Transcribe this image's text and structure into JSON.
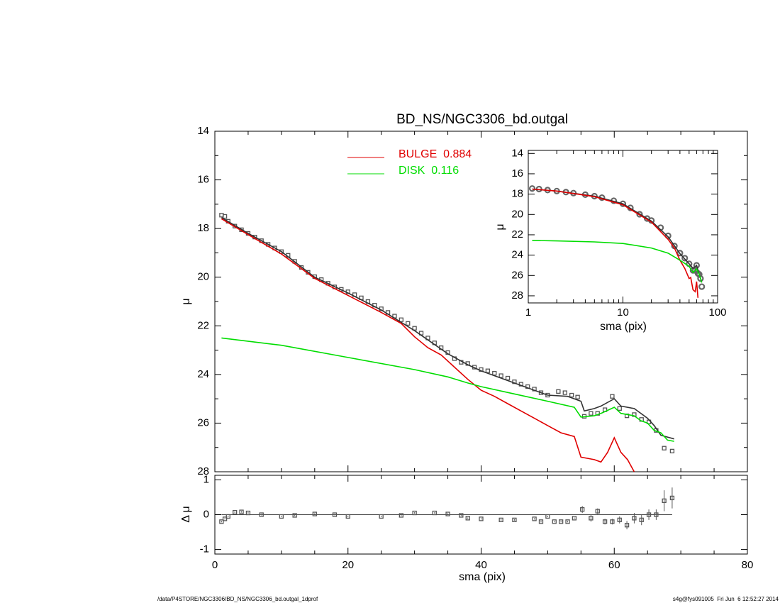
{
  "footer": {
    "left": "/data/P4STORE/NGC3306/BD_NS/NGC3306_bd.outgal_1dprof",
    "right": "s4g@fys091005  Fri Jun  6 12:52:27 2014"
  },
  "chart_data": [
    {
      "type": "line",
      "title": "BD_NS/NGC3306_bd.outgal",
      "ylabel": "μ",
      "xlim": [
        0,
        80
      ],
      "ylim": [
        28,
        14
      ],
      "xticks": [
        0,
        20,
        40,
        60,
        80
      ],
      "xminor": [
        5,
        10,
        15,
        25,
        30,
        35,
        45,
        50,
        55,
        65,
        70,
        75
      ],
      "xtick_labels": false,
      "yticks": [
        14,
        16,
        18,
        20,
        22,
        24,
        26,
        28
      ],
      "yminor": [
        15,
        17,
        19,
        21,
        23,
        25,
        27
      ],
      "legend": "top",
      "series": [
        {
          "style": "markers",
          "marker": "square",
          "color": "#555555",
          "x": [
            1,
            1.5,
            2,
            3,
            4,
            5,
            6,
            7,
            8,
            9,
            10,
            11,
            12,
            13,
            14,
            15,
            16,
            17,
            18,
            19,
            20,
            21,
            22,
            23,
            24,
            25,
            26,
            27,
            28,
            29,
            30,
            31,
            32,
            33,
            34,
            35,
            36,
            37,
            38,
            39,
            40,
            41,
            42,
            43,
            44,
            45,
            46,
            47,
            48,
            49,
            50,
            51.6,
            52.6,
            53.6,
            54.5,
            55.5,
            56.5,
            57.5,
            58.6,
            59.7,
            60.8,
            61.9,
            63,
            64.1,
            65.2,
            66.3,
            67.5,
            68.7
          ],
          "values": [
            17.45,
            17.5,
            17.7,
            17.9,
            18.05,
            18.2,
            18.35,
            18.5,
            18.65,
            18.8,
            18.95,
            19.1,
            19.35,
            19.6,
            19.8,
            19.98,
            20.1,
            20.25,
            20.4,
            20.5,
            20.6,
            20.72,
            20.85,
            21.0,
            21.15,
            21.3,
            21.45,
            21.6,
            21.75,
            21.9,
            22.1,
            22.3,
            22.5,
            22.7,
            22.9,
            23.1,
            23.35,
            23.5,
            23.55,
            23.7,
            23.8,
            23.85,
            23.95,
            24.05,
            24.15,
            24.3,
            24.4,
            24.5,
            24.6,
            24.75,
            24.85,
            24.7,
            24.75,
            24.85,
            24.93,
            25.72,
            25.6,
            25.6,
            25.45,
            24.9,
            25.4,
            25.7,
            25.65,
            25.85,
            25.95,
            26.3,
            27.03,
            27.15
          ]
        },
        {
          "style": "line",
          "color": "#333333",
          "x": [
            1,
            5,
            10,
            15,
            20,
            25,
            30,
            35,
            38,
            40,
            45,
            50,
            53,
            55,
            55.5,
            57,
            58,
            60,
            61,
            63,
            65,
            66,
            67,
            69
          ],
          "values": [
            17.55,
            18.2,
            18.95,
            20.0,
            20.65,
            21.35,
            22.2,
            23.15,
            23.6,
            23.85,
            24.35,
            24.85,
            24.9,
            25.1,
            25.5,
            25.4,
            25.3,
            25.0,
            25.3,
            25.4,
            25.8,
            26.1,
            26.5,
            26.65
          ]
        },
        {
          "name": "BULGE  0.884",
          "style": "line",
          "color": "#e00000",
          "x": [
            1,
            5,
            10,
            15,
            20,
            25,
            28,
            30,
            32,
            34,
            36,
            38,
            40,
            42,
            44,
            46,
            48,
            50,
            52,
            54,
            55,
            56,
            57,
            58,
            59,
            60,
            61,
            62,
            63
          ],
          "values": [
            17.6,
            18.25,
            19.05,
            20.05,
            20.75,
            21.45,
            21.9,
            22.45,
            22.9,
            23.2,
            23.7,
            24.2,
            24.65,
            24.9,
            25.2,
            25.5,
            25.8,
            26.1,
            26.4,
            26.55,
            27.4,
            27.45,
            27.5,
            27.6,
            27.2,
            26.6,
            27.2,
            27.5,
            28.0
          ]
        },
        {
          "name": "DISK  0.116",
          "style": "line",
          "color": "#00dd00",
          "x": [
            1,
            10,
            20,
            30,
            35,
            38,
            40,
            45,
            50,
            54,
            55,
            57,
            58,
            60,
            61,
            63,
            64,
            65,
            66,
            67,
            68,
            69
          ],
          "values": [
            22.5,
            22.8,
            23.3,
            23.8,
            24.1,
            24.35,
            24.5,
            24.8,
            25.1,
            25.35,
            25.75,
            25.7,
            25.6,
            25.35,
            25.6,
            25.7,
            25.9,
            26.0,
            26.3,
            26.4,
            26.7,
            26.75
          ]
        }
      ]
    },
    {
      "type": "scatter",
      "xlabel": "sma (pix)",
      "ylabel": "Δ μ",
      "xlim": [
        0,
        80
      ],
      "ylim": [
        -1.13,
        1.13
      ],
      "xticks": [
        0,
        20,
        40,
        60,
        80
      ],
      "xminor": [
        5,
        10,
        15,
        25,
        30,
        35,
        45,
        50,
        55,
        65,
        70,
        75
      ],
      "yticks": [
        -1,
        0,
        1
      ],
      "reference_line": 0,
      "series": [
        {
          "style": "markers",
          "marker": "square",
          "color": "#555555",
          "x": [
            1,
            1.5,
            2,
            3,
            4,
            5,
            7,
            10,
            12,
            15,
            18,
            20,
            25,
            28,
            30,
            33,
            35,
            37,
            38,
            40,
            43,
            45,
            48,
            49,
            50,
            51,
            52,
            53,
            54,
            55.2,
            56.5,
            57.5,
            58.6,
            59.7,
            60.8,
            61.9,
            63,
            64.1,
            65.2,
            66.3,
            67.5,
            68.7
          ],
          "values": [
            -0.2,
            -0.12,
            -0.05,
            0.07,
            0.08,
            0.05,
            0.0,
            -0.05,
            -0.02,
            0.02,
            0.0,
            -0.05,
            -0.05,
            -0.02,
            0.05,
            0.05,
            0.02,
            -0.02,
            -0.1,
            -0.12,
            -0.15,
            -0.15,
            -0.12,
            -0.2,
            -0.05,
            -0.2,
            -0.2,
            -0.2,
            -0.1,
            0.15,
            -0.1,
            0.1,
            -0.2,
            -0.2,
            -0.15,
            -0.3,
            -0.1,
            -0.15,
            0.0,
            0.0,
            0.4,
            0.48
          ],
          "errors": [
            0.02,
            0.02,
            0.02,
            0.02,
            0.02,
            0.02,
            0.02,
            0.02,
            0.02,
            0.02,
            0.02,
            0.02,
            0.02,
            0.02,
            0.02,
            0.02,
            0.02,
            0.02,
            0.02,
            0.02,
            0.02,
            0.02,
            0.02,
            0.02,
            0.02,
            0.02,
            0.02,
            0.02,
            0.02,
            0.1,
            0.1,
            0.08,
            0.08,
            0.08,
            0.1,
            0.12,
            0.15,
            0.15,
            0.15,
            0.15,
            0.3,
            0.3
          ]
        }
      ]
    },
    {
      "type": "line",
      "xlabel": "sma (pix)",
      "ylabel": "μ",
      "xlog": true,
      "xlim": [
        1,
        100
      ],
      "ylim": [
        28.7,
        13.7
      ],
      "xticks": [
        1,
        10,
        100
      ],
      "xminor": [
        2,
        3,
        4,
        5,
        6,
        7,
        8,
        9,
        20,
        30,
        40,
        50,
        60,
        70,
        80,
        90
      ],
      "yticks": [
        14,
        16,
        18,
        20,
        22,
        24,
        26,
        28
      ],
      "series": [
        {
          "style": "markers",
          "marker": "circle",
          "color": "#666666",
          "x": [
            1.1,
            1.3,
            1.6,
            2,
            2.5,
            3,
            4,
            5,
            6,
            8,
            10,
            12,
            15,
            18,
            20,
            25,
            30,
            35,
            40,
            45,
            50,
            55,
            58,
            60,
            62,
            64,
            66,
            68
          ],
          "values": [
            17.45,
            17.5,
            17.6,
            17.7,
            17.8,
            17.9,
            18.05,
            18.2,
            18.35,
            18.65,
            18.95,
            19.35,
            19.98,
            20.4,
            20.6,
            21.3,
            22.1,
            23.1,
            23.8,
            24.3,
            24.85,
            25.5,
            25.5,
            25.0,
            25.8,
            25.9,
            26.3,
            27.1
          ]
        },
        {
          "style": "line",
          "color": "#333333",
          "x": [
            1.1,
            2,
            5,
            10,
            20,
            30,
            40,
            50,
            55,
            60,
            64,
            68
          ],
          "values": [
            17.5,
            17.7,
            18.2,
            18.95,
            20.65,
            22.2,
            23.85,
            24.85,
            25.3,
            25.0,
            25.9,
            26.65
          ]
        },
        {
          "style": "line",
          "color": "#e00000",
          "x": [
            1.1,
            2,
            5,
            10,
            20,
            30,
            35,
            40,
            45,
            50,
            52,
            55,
            58,
            60,
            62
          ],
          "values": [
            17.5,
            17.7,
            18.25,
            19.05,
            20.75,
            22.45,
            23.3,
            24.5,
            25.3,
            26.3,
            26.2,
            27.4,
            27.6,
            26.6,
            28.2
          ]
        },
        {
          "style": "line",
          "color": "#00dd00",
          "x": [
            1.1,
            2,
            5,
            10,
            20,
            30,
            40,
            50,
            55,
            60,
            64,
            68
          ],
          "values": [
            22.55,
            22.6,
            22.7,
            22.85,
            23.3,
            23.8,
            24.5,
            25.1,
            25.7,
            25.35,
            25.9,
            26.7
          ]
        }
      ]
    }
  ]
}
